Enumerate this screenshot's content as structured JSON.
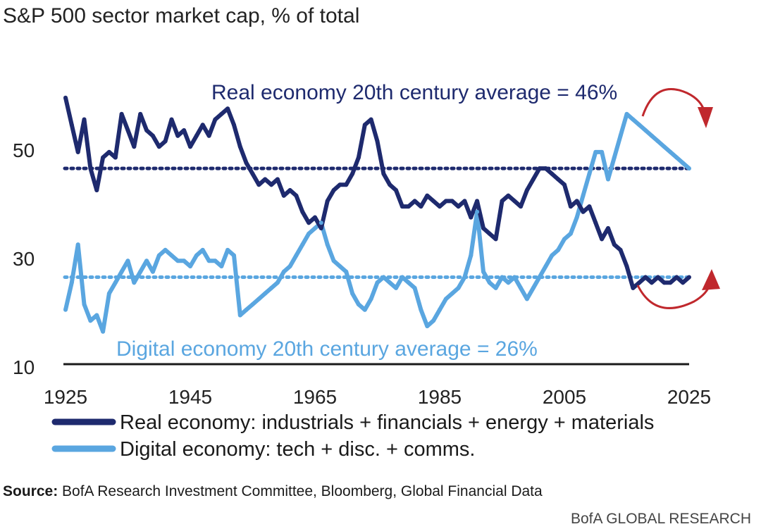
{
  "chart_data": {
    "type": "line",
    "title": "S&P 500 sector market cap, % of total",
    "xlim": [
      1925,
      2025
    ],
    "ylim": [
      10,
      60
    ],
    "x_ticks": [
      "1925",
      "1945",
      "1965",
      "1985",
      "2005",
      "2025"
    ],
    "y_ticks": [
      "50",
      "30",
      "10"
    ],
    "series": [
      {
        "name": "Real economy: industrials + financials + energy + materials",
        "color": "#1e2a6e",
        "x": [
          1925,
          1926,
          1927,
          1928,
          1929,
          1930,
          1931,
          1932,
          1933,
          1934,
          1935,
          1936,
          1937,
          1938,
          1939,
          1940,
          1941,
          1942,
          1943,
          1944,
          1945,
          1946,
          1947,
          1948,
          1949,
          1950,
          1951,
          1952,
          1953,
          1954,
          1955,
          1956,
          1957,
          1958,
          1959,
          1960,
          1961,
          1962,
          1963,
          1964,
          1965,
          1966,
          1967,
          1968,
          1969,
          1970,
          1971,
          1972,
          1973,
          1974,
          1975,
          1976,
          1977,
          1978,
          1979,
          1980,
          1981,
          1982,
          1983,
          1984,
          1985,
          1986,
          1987,
          1988,
          1989,
          1990,
          1991,
          1992,
          1993,
          1994,
          1995,
          1996,
          1997,
          1998,
          1999,
          2000,
          2001,
          2002,
          2003,
          2004,
          2005,
          2006,
          2007,
          2008,
          2009,
          2010,
          2011,
          2012,
          2013,
          2014,
          2015,
          2016,
          2017,
          2018,
          2019,
          2020,
          2021,
          2022,
          2023,
          2024,
          2025
        ],
        "values": [
          59,
          54,
          49,
          55,
          46,
          42,
          48,
          49,
          48,
          56,
          53,
          50,
          56,
          53,
          52,
          50,
          51,
          55,
          52,
          53,
          50,
          52,
          54,
          52,
          55,
          56,
          57,
          54,
          50,
          47,
          45,
          43,
          44,
          43,
          44,
          41,
          42,
          41,
          38,
          36,
          37,
          35,
          40,
          42,
          43,
          43,
          45,
          48,
          54,
          55,
          51,
          45,
          43,
          42,
          39,
          39,
          40,
          39,
          41,
          40,
          39,
          40,
          40,
          39,
          40,
          37,
          40,
          35,
          34,
          33,
          40,
          41,
          40,
          39,
          42,
          44,
          46,
          46,
          45,
          44,
          43,
          39,
          40,
          38,
          39,
          36,
          33,
          35,
          32,
          31,
          28,
          24,
          25,
          26,
          25,
          26,
          25,
          25,
          26,
          25,
          26
        ]
      },
      {
        "name": "Digital economy: tech + disc. + comms.",
        "color": "#5aa6e0",
        "x": [
          1925,
          1926,
          1927,
          1928,
          1929,
          1930,
          1931,
          1932,
          1933,
          1934,
          1935,
          1936,
          1937,
          1938,
          1939,
          1940,
          1941,
          1942,
          1943,
          1944,
          1945,
          1946,
          1947,
          1948,
          1949,
          1950,
          1951,
          1952,
          1953,
          1954,
          1955,
          1956,
          1957,
          1958,
          1959,
          1960,
          1961,
          1962,
          1963,
          1964,
          1965,
          1966,
          1967,
          1968,
          1969,
          1970,
          1971,
          1972,
          1973,
          1974,
          1975,
          1976,
          1977,
          1978,
          1979,
          1980,
          1981,
          1982,
          1983,
          1984,
          1985,
          1986,
          1987,
          1988,
          1989,
          1990,
          1991,
          1992,
          1993,
          1994,
          1995,
          1996,
          1997,
          1998,
          1999,
          2000,
          2001,
          2002,
          2003,
          2004,
          2005,
          2006,
          2007,
          2008,
          2009,
          2010,
          2011,
          2012,
          2013,
          2014,
          2015,
          2016,
          2017,
          2018,
          2019,
          2020,
          2021,
          2022,
          2023,
          2024,
          2025
        ],
        "values": [
          20,
          25,
          32,
          21,
          18,
          19,
          16,
          23,
          25,
          27,
          29,
          25,
          27,
          29,
          27,
          30,
          31,
          30,
          29,
          29,
          28,
          30,
          31,
          29,
          29,
          28,
          31,
          30,
          19,
          20,
          21,
          22,
          23,
          24,
          25,
          27,
          28,
          30,
          32,
          34,
          35,
          36,
          32,
          29,
          28,
          27,
          23,
          21,
          20,
          22,
          25,
          26,
          25,
          24,
          26,
          25,
          24,
          20,
          17,
          18,
          20,
          22,
          23,
          24,
          26,
          30,
          38,
          27,
          25,
          24,
          26,
          25,
          26,
          24,
          22,
          24,
          26,
          28,
          30,
          31,
          33,
          34,
          37,
          41,
          45,
          49,
          49,
          44,
          48,
          52,
          56,
          55,
          54,
          53,
          52,
          51,
          50,
          49,
          48,
          47,
          46
        ]
      }
    ],
    "reference_lines": [
      {
        "label": "Real economy 20th century average = 46%",
        "value": 46,
        "color": "#1e2a6e"
      },
      {
        "label": "Digital economy 20th century average = 26%",
        "value": 26,
        "color": "#5aa6e0"
      }
    ],
    "legend": [
      {
        "label": "Real economy: industrials + financials + energy + materials",
        "color": "#1e2a6e"
      },
      {
        "label": "Digital economy: tech + disc. + comms.",
        "color": "#5aa6e0"
      }
    ]
  },
  "source": {
    "label": "Source:",
    "text": " BofA Research Investment Committee, Bloomberg, Global Financial Data"
  },
  "brand": "BofA GLOBAL RESEARCH",
  "colors": {
    "real": "#1e2a6e",
    "digital": "#5aa6e0",
    "arrow": "#c0282d"
  }
}
